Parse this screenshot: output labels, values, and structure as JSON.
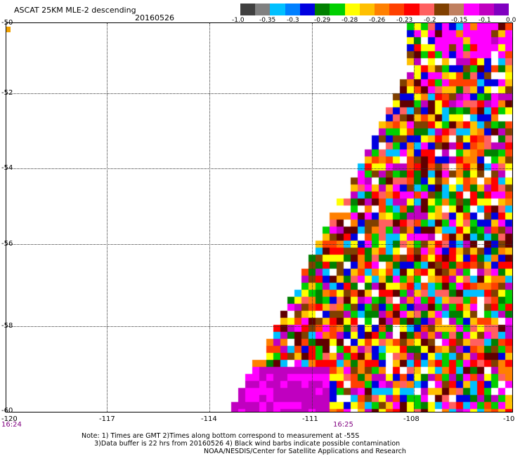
{
  "header": {
    "title": "ASCAT 25KM MLE-2 descending",
    "date": "20160526"
  },
  "legend": {
    "colors": [
      "#404040",
      "#808080",
      "#00c0ff",
      "#0080ff",
      "#0000e0",
      "#008000",
      "#00d000",
      "#ffff00",
      "#ffc000",
      "#ff8000",
      "#ff4000",
      "#ff0000",
      "#ff6060",
      "#804000",
      "#c08060",
      "#ff00ff",
      "#c000c0",
      "#8000c0"
    ],
    "labels": [
      "-1.0",
      "-0.35",
      "-0.3",
      "-0.29",
      "-0.28",
      "-0.26",
      "-0.23",
      "-0.2",
      "-0.15",
      "-0.1",
      "0.0"
    ]
  },
  "map": {
    "lat_labels": [
      "-50",
      "-52",
      "-54",
      "-56",
      "-58",
      "-60"
    ],
    "lon_labels": [
      "-120",
      "-117",
      "-114",
      "-111",
      "-108",
      "-10"
    ],
    "time_labels": [
      "16:24",
      "16:25"
    ]
  },
  "footer": {
    "note_line1": "Note: 1) Times are GMT 2)Times along bottom correspond to measurement at -55S",
    "note_line2": "3)Data buffer is 22 hrs from 20160526 4) Black wind barbs indicate possible contamination",
    "credit": "NOAA/NESDIS/Center for Satellite Applications and Research"
  }
}
